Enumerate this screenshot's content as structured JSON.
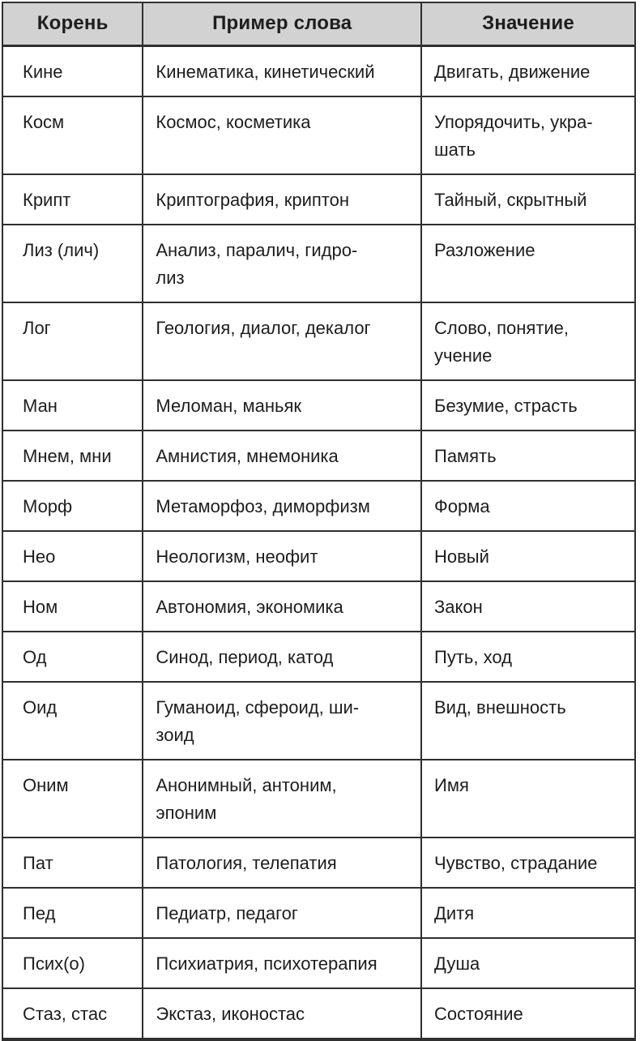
{
  "table": {
    "columns": [
      "Корень",
      "Пример слова",
      "Значение"
    ],
    "rows": [
      {
        "root": "Кине",
        "examples": "Кинематика, кинетический",
        "meaning": "Двигать, движение"
      },
      {
        "root": "Косм",
        "examples": "Космос, косметика",
        "meaning": "Упорядочить, укра-\nшать"
      },
      {
        "root": "Крипт",
        "examples": "Криптография, криптон",
        "meaning": "Тайный, скрытный"
      },
      {
        "root": "Лиз (лич)",
        "examples": "Анализ, паралич, гидро-\nлиз",
        "meaning": "Разложение"
      },
      {
        "root": "Лог",
        "examples": "Геология, диалог, декалог",
        "meaning": "Слово, понятие,\nучение"
      },
      {
        "root": "Ман",
        "examples": "Меломан, маньяк",
        "meaning": "Безумие, страсть"
      },
      {
        "root": "Мнем, мни",
        "examples": "Амнистия, мнемоника",
        "meaning": "Память"
      },
      {
        "root": "Морф",
        "examples": "Метаморфоз, диморфизм",
        "meaning": "Форма"
      },
      {
        "root": "Нео",
        "examples": "Неологизм, неофит",
        "meaning": "Новый"
      },
      {
        "root": "Ном",
        "examples": "Автономия, экономика",
        "meaning": "Закон"
      },
      {
        "root": "Од",
        "examples": "Синод, период, катод",
        "meaning": "Путь, ход"
      },
      {
        "root": "Оид",
        "examples": "Гуманоид, сфероид, ши-\nзоид",
        "meaning": "Вид, внешность"
      },
      {
        "root": "Оним",
        "examples": "Анонимный, антоним,\nэпоним",
        "meaning": "Имя"
      },
      {
        "root": "Пат",
        "examples": "Патология, телепатия",
        "meaning": "Чувство, страдание"
      },
      {
        "root": "Пед",
        "examples": "Педиатр, педагог",
        "meaning": "Дитя"
      },
      {
        "root": "Псих(о)",
        "examples": "Психиатрия, психотерапия",
        "meaning": "Душа"
      },
      {
        "root": "Стаз, стас",
        "examples": "Экстаз, иконостас",
        "meaning": "Состояние"
      }
    ]
  },
  "colors": {
    "header_bg": "#d2d2d2",
    "border": "#2f2f2f",
    "text": "#1d1d1d",
    "page_bg": "#ffffff"
  }
}
